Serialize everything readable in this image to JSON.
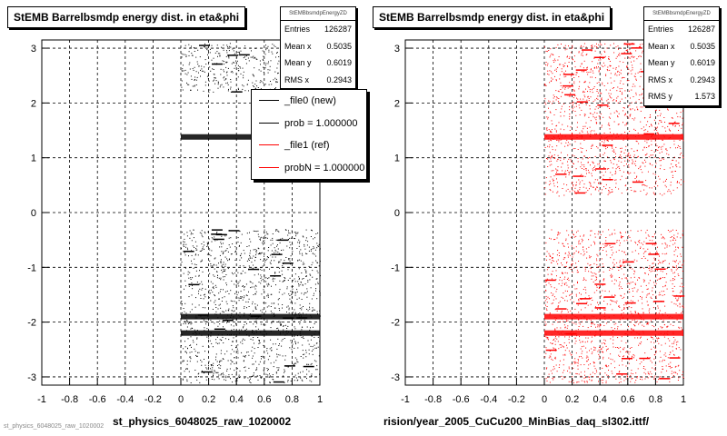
{
  "chart_data": [
    {
      "type": "scatter",
      "title": "StEMB Barrelbsmdp energy dist. in eta&phi",
      "xlabel": "st_physics_6048025_raw_1020002",
      "ylabel": "",
      "xlim": [
        -1,
        1
      ],
      "ylim": [
        -3.15,
        3.15
      ],
      "x_ticks": [
        "-1",
        "-0.8",
        "-0.6",
        "-0.4",
        "-0.2",
        "0",
        "0.2",
        "0.4",
        "0.6",
        "0.8",
        "1"
      ],
      "y_ticks": [
        "3",
        "2",
        "1",
        "0",
        "-1",
        "-2",
        "-3"
      ],
      "grid": true,
      "point_color": "#000000",
      "stats": {
        "name": "StEMBbsmdpEnergyZD",
        "entries_label": "Entries",
        "entries": "126287",
        "meanx_label": "Mean x",
        "meanx": "0.5035",
        "meany_label": "Mean y",
        "meany": "0.6019",
        "rmsx_label": "RMS x",
        "rmsx": "0.2943"
      },
      "legend": {
        "placement": "top-right",
        "entries": [
          {
            "label": "_file0 (new)",
            "color": "#000000"
          },
          {
            "label": "prob = 1.000000",
            "color": "#000000"
          },
          {
            "label": "_file1 (ref)",
            "color": "#ff0000"
          },
          {
            "label": "probN = 1.000000",
            "color": "#ff0000"
          }
        ]
      },
      "point_regions": [
        {
          "x": [
            0.0,
            1.0
          ],
          "y": [
            2.2,
            3.1
          ]
        },
        {
          "x": [
            0.0,
            1.0
          ],
          "y": [
            -3.1,
            -0.3
          ]
        }
      ],
      "dense_bands": [
        {
          "x": [
            0.0,
            1.0
          ],
          "y": 1.38
        },
        {
          "x": [
            0.0,
            1.0
          ],
          "y": -1.9
        },
        {
          "x": [
            0.0,
            1.0
          ],
          "y": -2.2
        }
      ]
    },
    {
      "type": "scatter",
      "title": "StEMB Barrelbsmdp energy dist. in eta&phi",
      "xlabel": "rision/year_2005_CuCu200_MinBias_daq_sl302.ittf/",
      "ylabel": "",
      "xlim": [
        -1,
        1
      ],
      "ylim": [
        -3.15,
        3.15
      ],
      "x_ticks": [
        "-1",
        "-0.8",
        "-0.6",
        "-0.4",
        "-0.2",
        "0",
        "0.2",
        "0.4",
        "0.6",
        "0.8",
        "1"
      ],
      "y_ticks": [
        "3",
        "2",
        "1",
        "0",
        "-1",
        "-2",
        "-3"
      ],
      "grid": true,
      "point_color": "#ff0000",
      "stats": {
        "name": "StEMBbsmdpEnergyZD",
        "entries_label": "Entries",
        "entries": "126287",
        "meanx_label": "Mean x",
        "meanx": "0.5035",
        "meany_label": "Mean y",
        "meany": "0.6019",
        "rmsx_label": "RMS x",
        "rmsx": "0.2943",
        "rmsy_label": "RMS y",
        "rmsy": "1.573"
      },
      "point_regions": [
        {
          "x": [
            0.0,
            1.0
          ],
          "y": [
            0.3,
            3.1
          ]
        },
        {
          "x": [
            0.0,
            1.0
          ],
          "y": [
            -3.1,
            -0.3
          ]
        }
      ],
      "dense_bands": [
        {
          "x": [
            0.0,
            1.0
          ],
          "y": 1.38
        },
        {
          "x": [
            0.0,
            1.0
          ],
          "y": -1.9
        },
        {
          "x": [
            0.0,
            1.0
          ],
          "y": -2.2
        }
      ]
    }
  ],
  "footer_text": "st_physics_6048025_raw_1020002"
}
